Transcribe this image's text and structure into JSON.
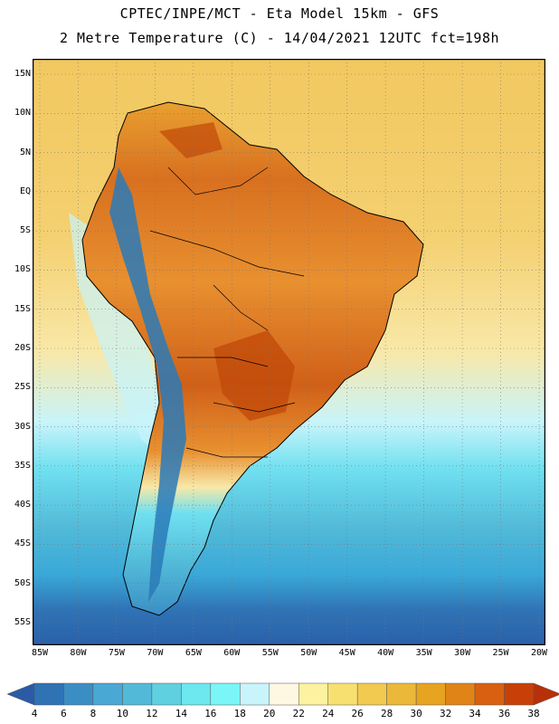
{
  "header": {
    "line1": "CPTEC/INPE/MCT -  Eta Model 15km - GFS",
    "line2": "2 Metre Temperature (C) - 14/04/2021 12UTC fct=198h"
  },
  "map": {
    "lat_labels": [
      "15N",
      "10N",
      "5N",
      "EQ",
      "5S",
      "10S",
      "15S",
      "20S",
      "25S",
      "30S",
      "35S",
      "40S",
      "45S",
      "50S",
      "55S"
    ],
    "lon_labels": [
      "85W",
      "80W",
      "75W",
      "70W",
      "65W",
      "60W",
      "55W",
      "50W",
      "45W",
      "40W",
      "35W",
      "30W",
      "25W",
      "20W"
    ],
    "ocean_colors": {
      "ocean_warm": "#f2c860",
      "ocean_mild": "#f8e8a8",
      "ocean_cool": "#70e0f0",
      "ocean_cold": "#3aa8d8",
      "ocean_coldest": "#2a60a8"
    },
    "land_colors": {
      "hot": "#c85010",
      "warm": "#e88a20",
      "mild": "#f0b040",
      "andes": "#2a7ab8"
    }
  },
  "legend": {
    "ticks": [
      "4",
      "6",
      "8",
      "10",
      "12",
      "14",
      "16",
      "18",
      "20",
      "22",
      "24",
      "26",
      "28",
      "30",
      "32",
      "34",
      "36",
      "38"
    ],
    "colors": [
      "#2b5ba6",
      "#2f73b5",
      "#3b8ec4",
      "#4aa8d4",
      "#52bad8",
      "#5fd0e0",
      "#6ce8ee",
      "#7af5f8",
      "#c8f4fb",
      "#fef8e2",
      "#fcf2a0",
      "#f8e070",
      "#f2ca50",
      "#ecb83a",
      "#e6a420",
      "#e08418",
      "#d86010",
      "#c84008",
      "#b83008"
    ]
  }
}
